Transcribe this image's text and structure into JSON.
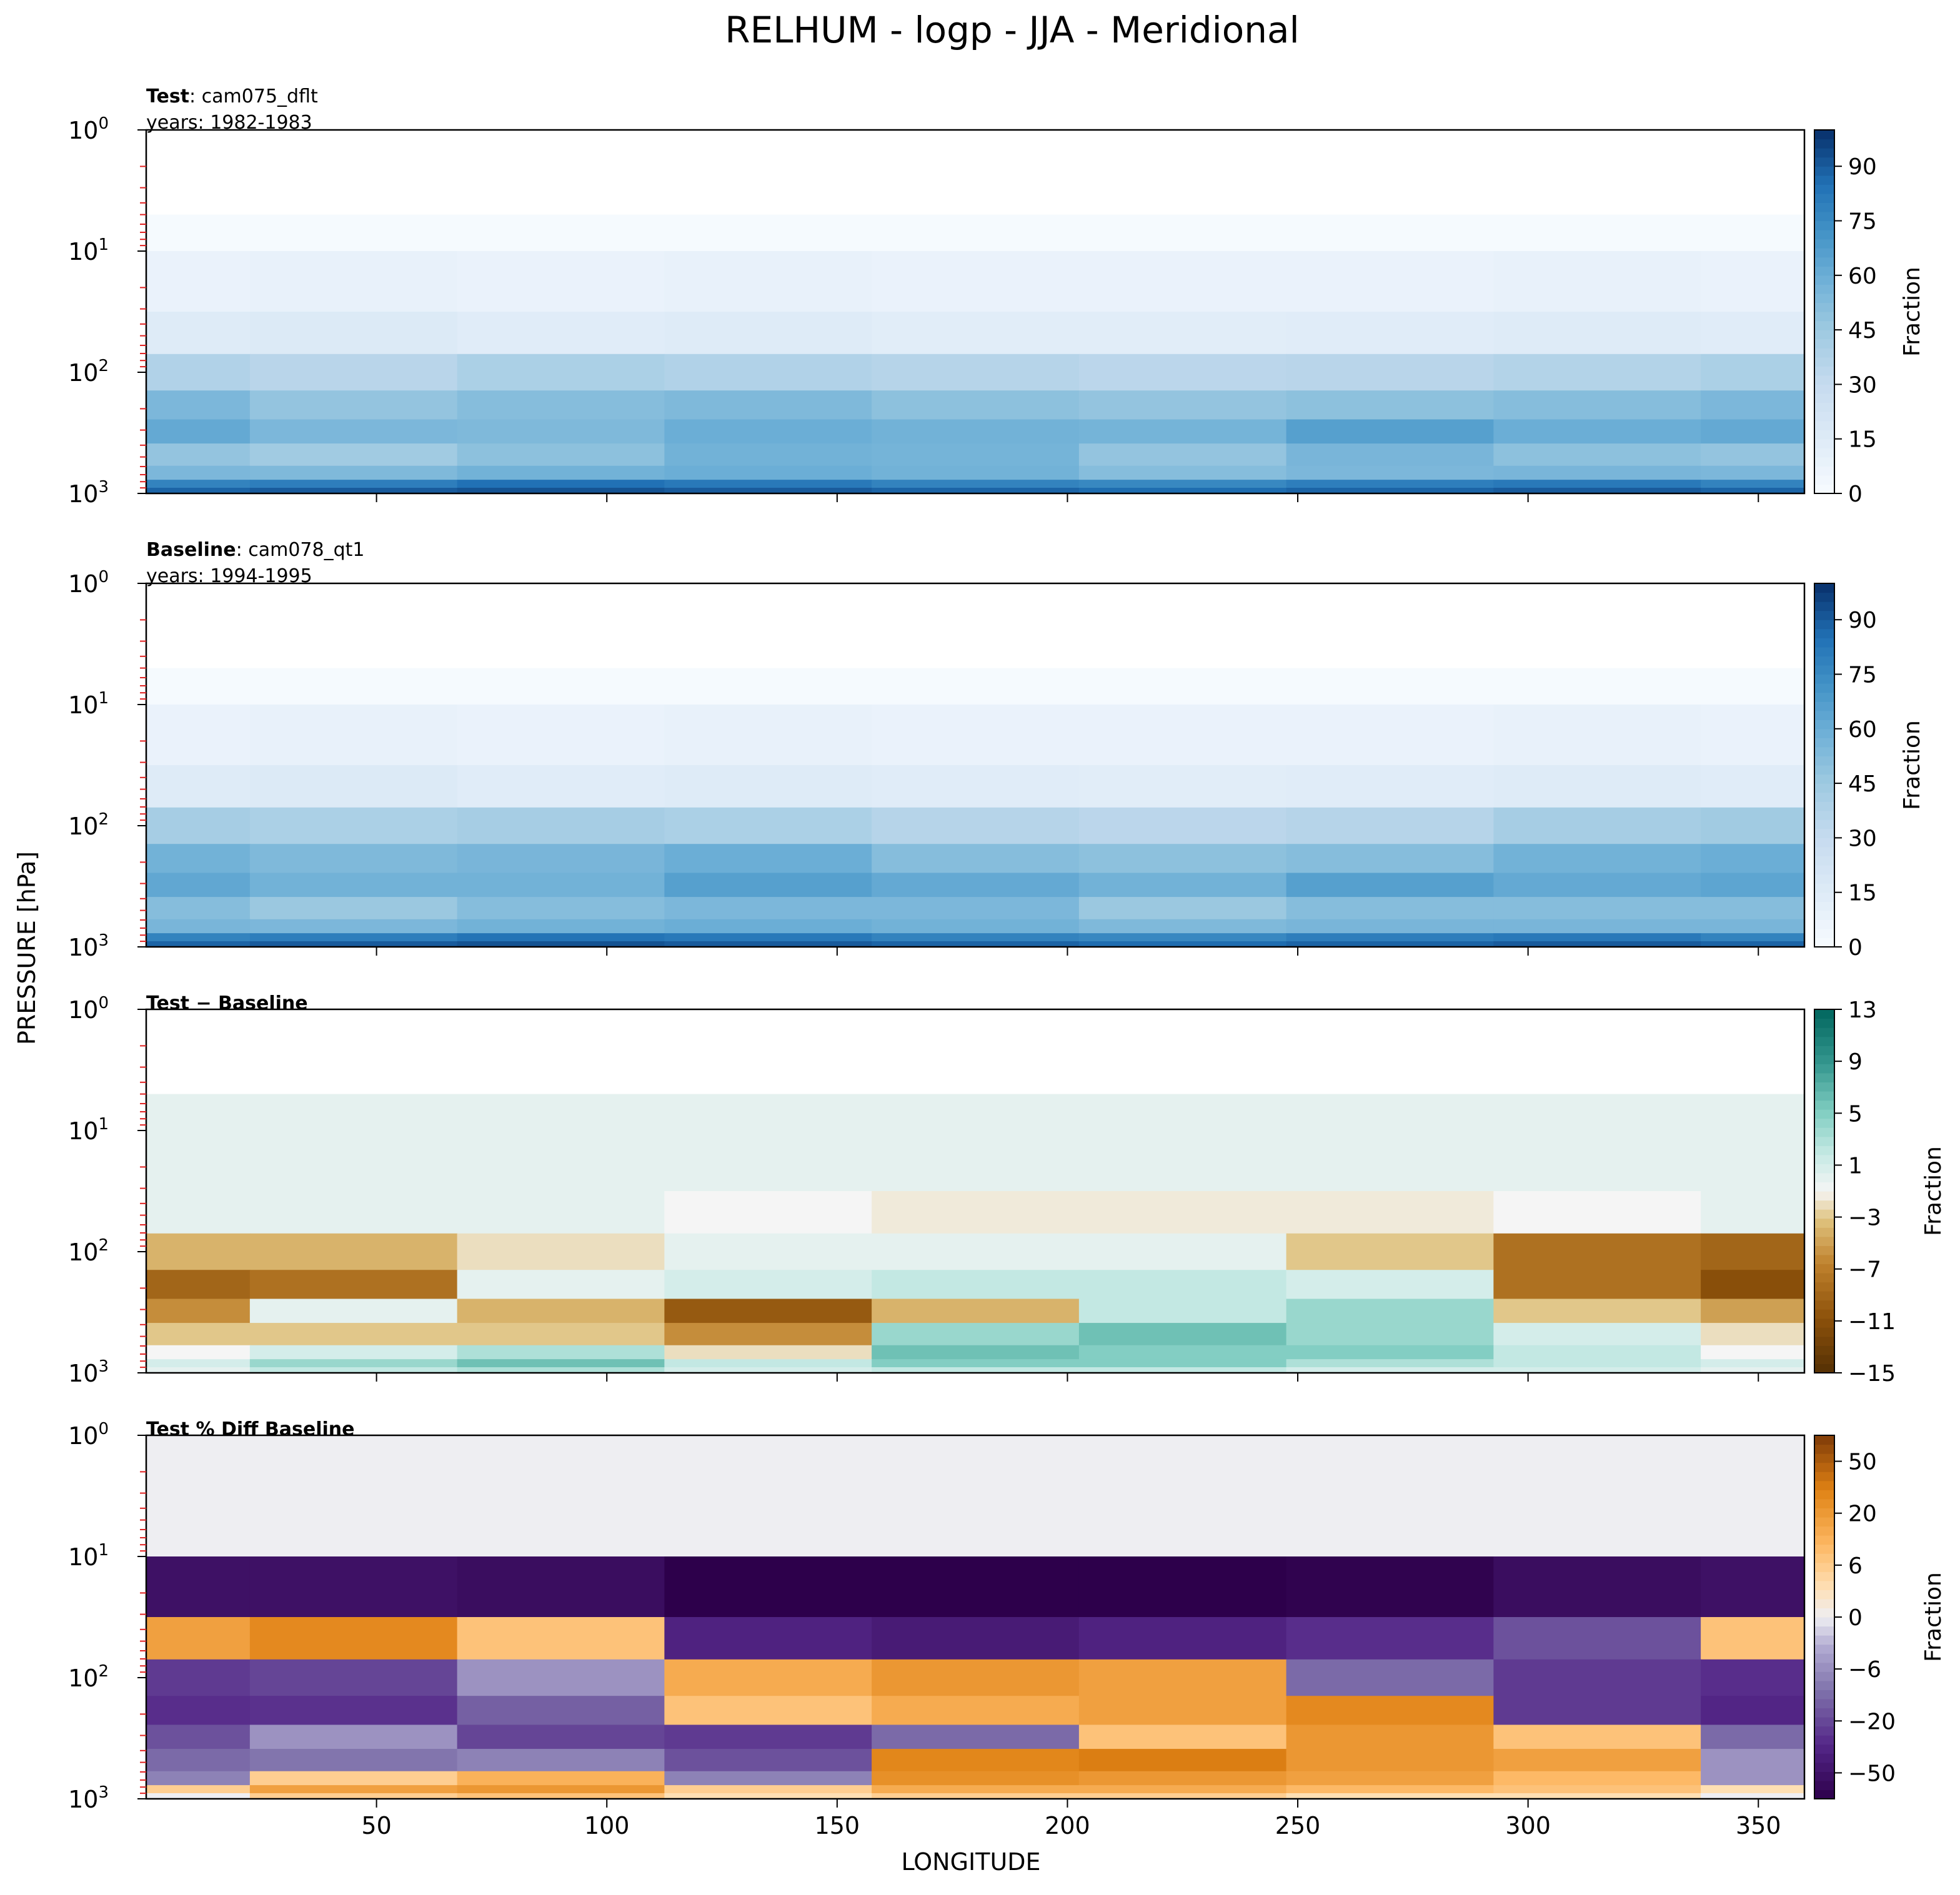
{
  "suptitle": "RELHUM - logp - JJA - Meridional",
  "shared_ylabel": "PRESSURE [hPa]",
  "shared_xlabel": "LONGITUDE",
  "x_tick_labels": [
    "50",
    "100",
    "150",
    "200",
    "250",
    "300",
    "350"
  ],
  "y_tick_labels": [
    {
      "base": "10",
      "exp": "0"
    },
    {
      "base": "10",
      "exp": "1"
    },
    {
      "base": "10",
      "exp": "2"
    },
    {
      "base": "10",
      "exp": "3"
    }
  ],
  "colorbar_label": "Fraction",
  "panels": [
    {
      "title_bold": "Test",
      "title_sep": ": ",
      "title_rest": "cam075_dflt",
      "subtitle": "years: 1982-1983",
      "colorbar_ticks": [
        "0",
        "15",
        "30",
        "45",
        "60",
        "75",
        "90"
      ]
    },
    {
      "title_bold": "Baseline",
      "title_sep": ": ",
      "title_rest": "cam078_qt1",
      "subtitle": "years: 1994-1995",
      "colorbar_ticks": [
        "0",
        "15",
        "30",
        "45",
        "60",
        "75",
        "90"
      ]
    },
    {
      "title_bold": "Test − Baseline",
      "title_sep": "",
      "title_rest": "",
      "subtitle": "",
      "colorbar_ticks": [
        "−15",
        "−11",
        "−7",
        "−3",
        "1",
        "5",
        "9",
        "13"
      ]
    },
    {
      "title_bold": "Test % Diff Baseline",
      "title_sep": "",
      "title_rest": "",
      "subtitle": "",
      "colorbar_ticks": [
        "−50",
        "−20",
        "−6",
        "0",
        "6",
        "20",
        "50"
      ]
    }
  ],
  "chart_data": [
    {
      "type": "heatmap",
      "title": "Test: cam075_dflt",
      "xlabel": "LONGITUDE",
      "ylabel": "PRESSURE [hPa]",
      "xlim": [
        0,
        360
      ],
      "ylim": [
        1000,
        1
      ],
      "y_scale": "log",
      "colorbar": {
        "label": "Fraction",
        "range": [
          0,
          100
        ],
        "ticks": [
          0,
          15,
          30,
          45,
          60,
          75,
          90
        ],
        "colormap": "Blues"
      },
      "x": [
        0,
        45,
        90,
        135,
        180,
        225,
        270,
        315,
        360
      ],
      "pressure_levels": [
        5,
        20,
        50,
        100,
        200,
        300,
        500,
        700,
        850,
        950
      ],
      "values": [
        [
          1,
          1,
          1,
          1,
          1,
          1,
          1,
          1,
          1
        ],
        [
          8,
          9,
          8,
          9,
          8,
          8,
          8,
          9,
          8
        ],
        [
          15,
          16,
          14,
          15,
          13,
          13,
          14,
          15,
          14
        ],
        [
          38,
          35,
          40,
          38,
          36,
          34,
          35,
          37,
          40
        ],
        [
          55,
          48,
          52,
          54,
          50,
          48,
          50,
          52,
          55
        ],
        [
          62,
          55,
          54,
          60,
          58,
          57,
          66,
          60,
          62
        ],
        [
          48,
          44,
          50,
          58,
          57,
          48,
          56,
          50,
          48
        ],
        [
          55,
          54,
          58,
          60,
          58,
          52,
          55,
          56,
          55
        ],
        [
          78,
          80,
          85,
          82,
          78,
          76,
          80,
          82,
          78
        ],
        [
          88,
          90,
          92,
          90,
          88,
          86,
          88,
          90,
          88
        ]
      ]
    },
    {
      "type": "heatmap",
      "title": "Baseline: cam078_qt1",
      "xlabel": "LONGITUDE",
      "ylabel": "PRESSURE [hPa]",
      "xlim": [
        0,
        360
      ],
      "ylim": [
        1000,
        1
      ],
      "y_scale": "log",
      "colorbar": {
        "label": "Fraction",
        "range": [
          0,
          100
        ],
        "ticks": [
          0,
          15,
          30,
          45,
          60,
          75,
          90
        ],
        "colormap": "Blues"
      },
      "x": [
        0,
        45,
        90,
        135,
        180,
        225,
        270,
        315,
        360
      ],
      "pressure_levels": [
        5,
        20,
        50,
        100,
        200,
        300,
        500,
        700,
        850,
        950
      ],
      "values": [
        [
          1,
          1,
          1,
          1,
          1,
          1,
          1,
          1,
          1
        ],
        [
          8,
          9,
          8,
          9,
          8,
          8,
          8,
          9,
          8
        ],
        [
          15,
          16,
          14,
          15,
          14,
          13,
          14,
          15,
          14
        ],
        [
          42,
          40,
          42,
          40,
          36,
          34,
          36,
          42,
          44
        ],
        [
          58,
          54,
          56,
          60,
          52,
          50,
          52,
          58,
          60
        ],
        [
          63,
          58,
          58,
          66,
          62,
          58,
          66,
          62,
          64
        ],
        [
          52,
          46,
          52,
          55,
          55,
          46,
          52,
          52,
          52
        ],
        [
          56,
          55,
          58,
          60,
          58,
          54,
          56,
          56,
          56
        ],
        [
          78,
          80,
          84,
          82,
          78,
          76,
          80,
          82,
          78
        ],
        [
          88,
          90,
          92,
          90,
          88,
          86,
          88,
          90,
          88
        ]
      ]
    },
    {
      "type": "heatmap",
      "title": "Test − Baseline",
      "xlabel": "LONGITUDE",
      "ylabel": "PRESSURE [hPa]",
      "xlim": [
        0,
        360
      ],
      "ylim": [
        1000,
        1
      ],
      "y_scale": "log",
      "colorbar": {
        "label": "Fraction",
        "range": [
          -15,
          13
        ],
        "ticks": [
          -15,
          -11,
          -7,
          -3,
          1,
          5,
          9,
          13
        ],
        "colormap": "BrBG"
      },
      "x": [
        0,
        45,
        90,
        135,
        180,
        225,
        270,
        315,
        360
      ],
      "pressure_levels": [
        5,
        20,
        50,
        100,
        200,
        300,
        500,
        700,
        850,
        950
      ],
      "values": [
        [
          0,
          0,
          0,
          0,
          0,
          0,
          0,
          0,
          0
        ],
        [
          0,
          0,
          0,
          0,
          0,
          0,
          0,
          0,
          0
        ],
        [
          0,
          0,
          0,
          -1,
          -1.5,
          -1.5,
          -1.5,
          -1,
          0
        ],
        [
          -4,
          -4,
          -2,
          0,
          0,
          0,
          -3,
          -8,
          -9
        ],
        [
          -9,
          -8,
          0,
          1,
          2,
          2,
          1,
          -8,
          -11
        ],
        [
          -6,
          0,
          -4,
          -10,
          -4,
          2,
          4,
          -3,
          -5
        ],
        [
          -3,
          -3,
          -3,
          -6,
          4,
          6,
          4,
          1,
          -2
        ],
        [
          -1,
          1,
          3,
          -2,
          6,
          5,
          5,
          2,
          -1
        ],
        [
          1,
          4,
          6,
          2,
          5,
          5,
          3,
          2,
          1
        ],
        [
          0,
          2,
          3,
          1,
          2,
          2,
          1,
          1,
          0
        ]
      ]
    },
    {
      "type": "heatmap",
      "title": "Test % Diff Baseline",
      "xlabel": "LONGITUDE",
      "ylabel": "PRESSURE [hPa]",
      "xlim": [
        0,
        360
      ],
      "ylim": [
        1000,
        1
      ],
      "y_scale": "log",
      "colorbar": {
        "label": "Fraction",
        "ticks": [
          -50,
          -20,
          -6,
          0,
          6,
          20,
          50
        ],
        "colormap": "PuOr"
      },
      "x": [
        0,
        45,
        90,
        135,
        180,
        225,
        270,
        315,
        360
      ],
      "pressure_levels": [
        5,
        20,
        50,
        100,
        200,
        300,
        500,
        700,
        850,
        950
      ],
      "values": [
        [
          0,
          0,
          0,
          0,
          0,
          0,
          0,
          0,
          0
        ],
        [
          -35,
          -35,
          -40,
          -60,
          -60,
          -60,
          -55,
          -40,
          -35
        ],
        [
          8,
          14,
          3,
          -20,
          -25,
          -20,
          -15,
          -8,
          3
        ],
        [
          -12,
          -10,
          -2,
          6,
          10,
          8,
          -5,
          -12,
          -15
        ],
        [
          -15,
          -14,
          -6,
          3,
          6,
          8,
          14,
          -12,
          -18
        ],
        [
          -8,
          -2,
          -10,
          -12,
          -5,
          3,
          10,
          3,
          -5
        ],
        [
          -5,
          -4,
          -3,
          -8,
          15,
          18,
          10,
          8,
          -2
        ],
        [
          -3,
          2,
          5,
          -3,
          12,
          10,
          8,
          4,
          -2
        ],
        [
          2,
          8,
          10,
          2,
          6,
          6,
          4,
          3,
          1
        ],
        [
          0,
          2,
          3,
          1,
          2,
          2,
          1,
          1,
          0
        ]
      ]
    }
  ]
}
